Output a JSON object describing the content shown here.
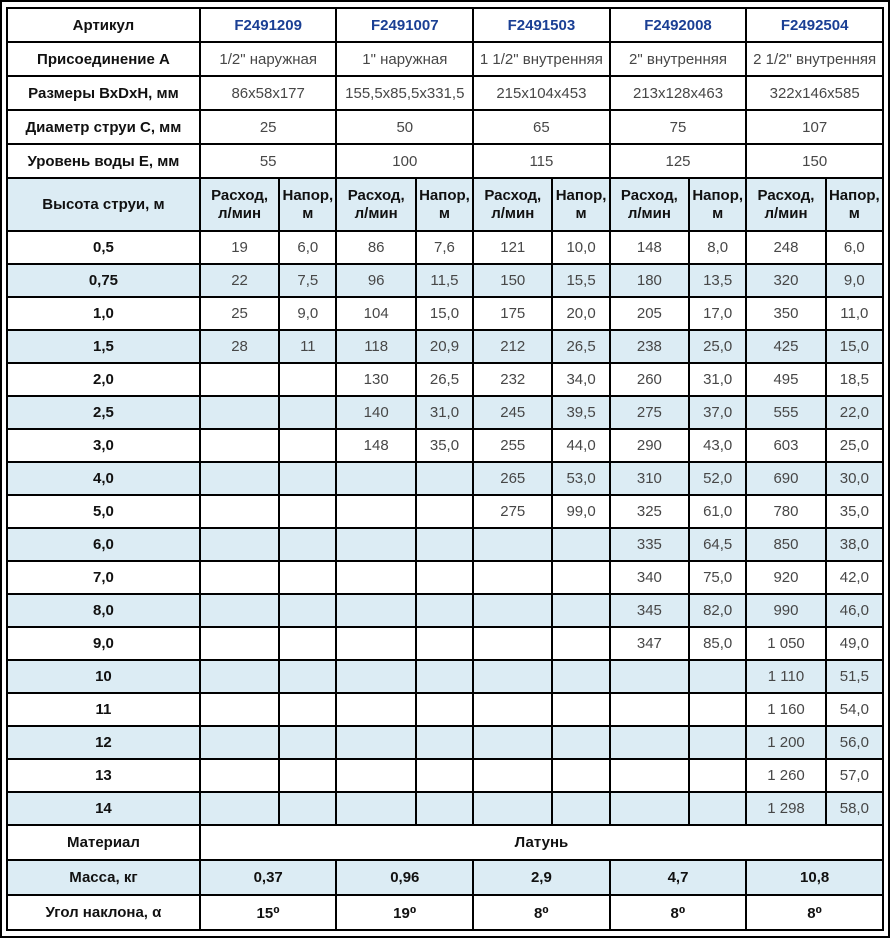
{
  "colors": {
    "row_alt_blue": "#dcecf4",
    "article_number_blue": "#1a3f94",
    "border_black": "#000000",
    "value_gray": "#474747"
  },
  "table": {
    "article_row": {
      "label": "Артикул",
      "values": [
        "F2491209",
        "F2491007",
        "F2491503",
        "F2492008",
        "F2492504"
      ]
    },
    "spec_rows": [
      {
        "label": "Присоединение А",
        "values": [
          "1/2\" наружная",
          "1\" наружная",
          "1 1/2\" внутренняя",
          "2\" внутренняя",
          "2 1/2\" внутренняя"
        ]
      },
      {
        "label": "Размеры ВхDхН, мм",
        "values": [
          "86х58х177",
          "155,5х85,5х331,5",
          "215х104х453",
          "213х128х463",
          "322х146х585"
        ]
      },
      {
        "label": "Диаметр струи С, мм",
        "values": [
          "25",
          "50",
          "65",
          "75",
          "107"
        ]
      },
      {
        "label": "Уровень воды Е, мм",
        "values": [
          "55",
          "100",
          "115",
          "125",
          "150"
        ]
      }
    ],
    "jet_header": {
      "label": "Высота струи, м",
      "flow_label": "Расход,\nл/мин",
      "head_label": "Напор,\nм"
    },
    "jet_rows": [
      {
        "height": "0,5",
        "values": [
          "19",
          "6,0",
          "86",
          "7,6",
          "121",
          "10,0",
          "148",
          "8,0",
          "248",
          "6,0"
        ]
      },
      {
        "height": "0,75",
        "values": [
          "22",
          "7,5",
          "96",
          "11,5",
          "150",
          "15,5",
          "180",
          "13,5",
          "320",
          "9,0"
        ]
      },
      {
        "height": "1,0",
        "values": [
          "25",
          "9,0",
          "104",
          "15,0",
          "175",
          "20,0",
          "205",
          "17,0",
          "350",
          "11,0"
        ]
      },
      {
        "height": "1,5",
        "values": [
          "28",
          "11",
          "118",
          "20,9",
          "212",
          "26,5",
          "238",
          "25,0",
          "425",
          "15,0"
        ]
      },
      {
        "height": "2,0",
        "values": [
          "",
          "",
          "130",
          "26,5",
          "232",
          "34,0",
          "260",
          "31,0",
          "495",
          "18,5"
        ]
      },
      {
        "height": "2,5",
        "values": [
          "",
          "",
          "140",
          "31,0",
          "245",
          "39,5",
          "275",
          "37,0",
          "555",
          "22,0"
        ]
      },
      {
        "height": "3,0",
        "values": [
          "",
          "",
          "148",
          "35,0",
          "255",
          "44,0",
          "290",
          "43,0",
          "603",
          "25,0"
        ]
      },
      {
        "height": "4,0",
        "values": [
          "",
          "",
          "",
          "",
          "265",
          "53,0",
          "310",
          "52,0",
          "690",
          "30,0"
        ]
      },
      {
        "height": "5,0",
        "values": [
          "",
          "",
          "",
          "",
          "275",
          "99,0",
          "325",
          "61,0",
          "780",
          "35,0"
        ]
      },
      {
        "height": "6,0",
        "values": [
          "",
          "",
          "",
          "",
          "",
          "",
          "335",
          "64,5",
          "850",
          "38,0"
        ]
      },
      {
        "height": "7,0",
        "values": [
          "",
          "",
          "",
          "",
          "",
          "",
          "340",
          "75,0",
          "920",
          "42,0"
        ]
      },
      {
        "height": "8,0",
        "values": [
          "",
          "",
          "",
          "",
          "",
          "",
          "345",
          "82,0",
          "990",
          "46,0"
        ]
      },
      {
        "height": "9,0",
        "values": [
          "",
          "",
          "",
          "",
          "",
          "",
          "347",
          "85,0",
          "1 050",
          "49,0"
        ]
      },
      {
        "height": "10",
        "values": [
          "",
          "",
          "",
          "",
          "",
          "",
          "",
          "",
          "1 110",
          "51,5"
        ]
      },
      {
        "height": "11",
        "values": [
          "",
          "",
          "",
          "",
          "",
          "",
          "",
          "",
          "1 160",
          "54,0"
        ]
      },
      {
        "height": "12",
        "values": [
          "",
          "",
          "",
          "",
          "",
          "",
          "",
          "",
          "1 200",
          "56,0"
        ]
      },
      {
        "height": "13",
        "values": [
          "",
          "",
          "",
          "",
          "",
          "",
          "",
          "",
          "1 260",
          "57,0"
        ]
      },
      {
        "height": "14",
        "values": [
          "",
          "",
          "",
          "",
          "",
          "",
          "",
          "",
          "1 298",
          "58,0"
        ]
      }
    ],
    "material_row": {
      "label": "Материал",
      "value": "Латунь"
    },
    "mass_row": {
      "label": "Масса, кг",
      "values": [
        "0,37",
        "0,96",
        "2,9",
        "4,7",
        "10,8"
      ]
    },
    "angle_row": {
      "label": "Угол наклона, α",
      "values": [
        "15⁰",
        "19⁰",
        "8⁰",
        "8⁰",
        "8⁰"
      ]
    }
  }
}
